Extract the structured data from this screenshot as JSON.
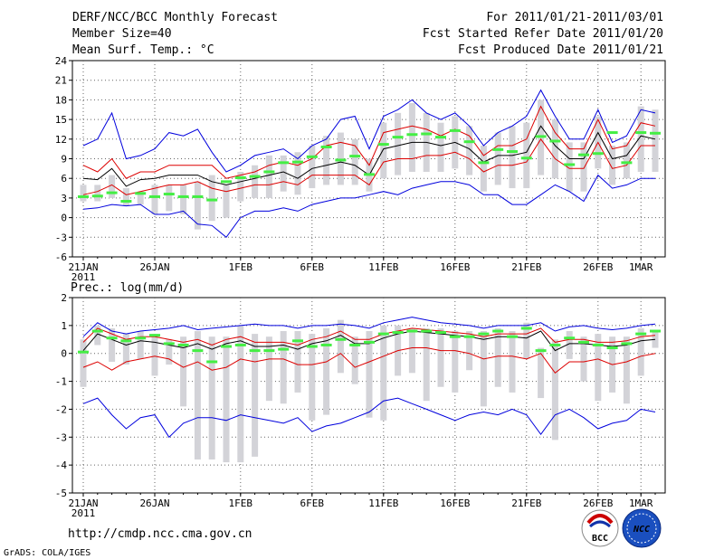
{
  "header": {
    "title": "DERF/NCC/BCC Monthly Forecast",
    "member_size": "Member Size=40",
    "variable": "Mean Surf. Temp.: °C",
    "period": "For 2011/01/21-2011/03/01",
    "started": "Fcst Started Refer Date 2011/01/20",
    "produced": "Fcst Produced Date 2011/01/21"
  },
  "footer": {
    "url": "http://cmdp.ncc.cma.gov.cn",
    "credit": "GrADS: COLA/IGES",
    "logo_bcc": "BCC",
    "logo_ncc": "NCC"
  },
  "colors": {
    "box": "#d3d3d8",
    "median": "#44ee44",
    "mean": "#000000",
    "std": "#dd0000",
    "extreme": "#0000dd",
    "grid": "#666666"
  },
  "chart_data": [
    {
      "type": "line",
      "title": "Mean Surf. Temp.: °C",
      "ylim": [
        -6,
        24
      ],
      "yticks": [
        -6,
        -3,
        0,
        3,
        6,
        9,
        12,
        15,
        18,
        21,
        24
      ],
      "x_ticks": [
        {
          "day": 0,
          "label": "21JAN",
          "sub": "2011"
        },
        {
          "day": 5,
          "label": "26JAN"
        },
        {
          "day": 11,
          "label": "1FEB"
        },
        {
          "day": 16,
          "label": "6FEB"
        },
        {
          "day": 21,
          "label": "11FEB"
        },
        {
          "day": 26,
          "label": "16FEB"
        },
        {
          "day": 31,
          "label": "21FEB"
        },
        {
          "day": 36,
          "label": "26FEB"
        },
        {
          "day": 39,
          "label": "1MAR"
        }
      ],
      "series": [
        {
          "name": "max",
          "values": [
            11,
            12,
            16,
            9,
            9.5,
            10.5,
            13,
            12.5,
            13.5,
            10,
            7,
            8,
            9.5,
            10,
            10.5,
            9,
            11,
            12,
            15,
            15.5,
            10.5,
            15.5,
            16.5,
            18,
            16,
            15,
            16,
            14,
            11,
            13,
            14,
            15.5,
            19.5,
            15.5,
            12,
            12,
            16.5,
            11.5,
            12.5,
            16.5,
            16
          ]
        },
        {
          "name": "mean_plus_std",
          "values": [
            8,
            7,
            9,
            6,
            7,
            7,
            8,
            8,
            8,
            8,
            6,
            6.5,
            7,
            8,
            8.5,
            8,
            9,
            11,
            11.5,
            11,
            8,
            13,
            13.5,
            14,
            13.5,
            12.5,
            13.5,
            12.5,
            9.5,
            11,
            11,
            12,
            17,
            13,
            10.5,
            10.5,
            15,
            10.5,
            11,
            14.5,
            14
          ]
        },
        {
          "name": "mean",
          "values": [
            6,
            5.8,
            7.5,
            4.8,
            5.8,
            6,
            6.5,
            6.5,
            6.5,
            5.5,
            5,
            5.5,
            6,
            6.5,
            7,
            6,
            7.5,
            8,
            8.5,
            8,
            6.5,
            10.5,
            11,
            11.5,
            11.5,
            11,
            11.5,
            10.5,
            8.5,
            9.5,
            9.5,
            10,
            14,
            11,
            9,
            9,
            13,
            9,
            9.5,
            12.5,
            12
          ]
        },
        {
          "name": "mean_minus_std",
          "values": [
            3.5,
            4,
            5,
            3.5,
            4,
            4.5,
            5,
            5,
            5.5,
            4.5,
            4,
            4.5,
            5,
            5,
            5.5,
            5,
            6.5,
            6.5,
            6.5,
            6.5,
            5,
            8.5,
            9,
            9,
            9.5,
            9.5,
            10,
            9,
            7,
            8,
            8,
            8.5,
            12,
            9,
            7.5,
            7.5,
            11.5,
            7.5,
            8,
            11,
            11
          ]
        },
        {
          "name": "min",
          "values": [
            1.3,
            1.5,
            2,
            1.8,
            2,
            0.5,
            0.5,
            1,
            -1,
            -1.2,
            -3,
            0,
            1,
            1,
            1.5,
            1,
            2,
            2.5,
            3,
            3,
            3.5,
            4,
            3.5,
            4.5,
            5,
            5.5,
            5.5,
            5,
            3.5,
            3.5,
            2,
            2,
            3.5,
            5,
            4,
            2.5,
            6.5,
            4.5,
            5,
            6,
            6
          ]
        },
        {
          "name": "ensemble_median",
          "values": [
            3.2,
            3.3,
            3.8,
            2.5,
            3.7,
            3.2,
            3.6,
            3.2,
            3.2,
            2.7,
            5.5,
            6.1,
            6.3,
            7,
            8.4,
            8.5,
            9.3,
            10.8,
            8.8,
            9.4,
            6.6,
            11.2,
            12.3,
            12.7,
            12.8,
            12.3,
            13.3,
            11.6,
            8.4,
            10.4,
            10.1,
            9.1,
            12.4,
            11.7,
            8.1,
            9.6,
            9.8,
            13,
            8.4,
            13,
            12.9
          ]
        }
      ],
      "boxes": {
        "low": [
          2.5,
          2.5,
          3,
          1.8,
          2,
          0.5,
          1,
          0.5,
          -1.8,
          -0.5,
          0,
          2.5,
          3,
          3,
          4,
          3.5,
          4.5,
          5,
          5,
          5,
          4,
          6,
          6.5,
          7,
          7,
          7,
          7.5,
          6.5,
          4,
          5,
          4.5,
          4.5,
          6.5,
          6,
          4,
          4,
          7.5,
          5,
          6,
          7,
          7
        ],
        "high": [
          5,
          5,
          6.5,
          4.5,
          4,
          5,
          5,
          5,
          5.5,
          6.5,
          5,
          7,
          8,
          9.5,
          9.5,
          10,
          11,
          12.5,
          13,
          12,
          9,
          14.5,
          16,
          17.5,
          16,
          14.5,
          15.5,
          14,
          11,
          13,
          14,
          14.5,
          18,
          15,
          11.5,
          11.5,
          15.5,
          11,
          11.5,
          17,
          16.5
        ]
      }
    },
    {
      "type": "line",
      "title": "Prec.: log(mm/d)",
      "ylim": [
        -5,
        2
      ],
      "yticks": [
        -5,
        -4,
        -3,
        -2,
        -1,
        0,
        1,
        2
      ],
      "x_ticks": [
        {
          "day": 0,
          "label": "21JAN",
          "sub": "2011"
        },
        {
          "day": 5,
          "label": "26JAN"
        },
        {
          "day": 11,
          "label": "1FEB"
        },
        {
          "day": 16,
          "label": "6FEB"
        },
        {
          "day": 21,
          "label": "11FEB"
        },
        {
          "day": 26,
          "label": "16FEB"
        },
        {
          "day": 31,
          "label": "21FEB"
        },
        {
          "day": 36,
          "label": "26FEB"
        },
        {
          "day": 39,
          "label": "1MAR"
        }
      ],
      "series": [
        {
          "name": "max",
          "values": [
            0.6,
            1.1,
            0.8,
            0.7,
            0.8,
            0.85,
            0.9,
            1,
            0.85,
            0.9,
            0.95,
            1,
            1.05,
            1,
            1,
            0.9,
            1,
            1,
            1.05,
            1,
            0.9,
            1.1,
            1.2,
            1.3,
            1.2,
            1.1,
            1.05,
            1,
            0.9,
            1,
            1,
            1,
            1.1,
            0.8,
            0.95,
            1,
            0.9,
            0.85,
            0.9,
            1,
            1.05
          ]
        },
        {
          "name": "mean_plus_std",
          "values": [
            0.4,
            0.9,
            0.7,
            0.5,
            0.6,
            0.6,
            0.5,
            0.4,
            0.5,
            0.3,
            0.5,
            0.6,
            0.4,
            0.4,
            0.4,
            0.3,
            0.5,
            0.6,
            0.8,
            0.5,
            0.5,
            0.7,
            0.8,
            0.9,
            0.85,
            0.8,
            0.75,
            0.7,
            0.6,
            0.7,
            0.7,
            0.7,
            0.9,
            0.4,
            0.5,
            0.5,
            0.4,
            0.4,
            0.45,
            0.6,
            0.65
          ]
        },
        {
          "name": "mean",
          "values": [
            0.1,
            0.7,
            0.5,
            0.3,
            0.45,
            0.4,
            0.3,
            0.2,
            0.35,
            0.15,
            0.35,
            0.45,
            0.25,
            0.25,
            0.3,
            0.15,
            0.35,
            0.45,
            0.65,
            0.35,
            0.35,
            0.55,
            0.7,
            0.8,
            0.75,
            0.7,
            0.65,
            0.6,
            0.5,
            0.6,
            0.6,
            0.55,
            0.8,
            0.1,
            0.35,
            0.35,
            0.3,
            0.25,
            0.3,
            0.45,
            0.5
          ]
        },
        {
          "name": "mean_minus_std",
          "values": [
            -0.5,
            -0.3,
            -0.6,
            -0.3,
            -0.2,
            -0.1,
            -0.2,
            -0.5,
            -0.3,
            -0.6,
            -0.5,
            -0.2,
            -0.3,
            -0.2,
            -0.2,
            -0.4,
            -0.4,
            -0.3,
            0,
            -0.5,
            -0.3,
            -0.1,
            0.1,
            0.2,
            0.2,
            0.1,
            0.1,
            0,
            -0.2,
            -0.1,
            -0.1,
            -0.2,
            0,
            -0.7,
            -0.3,
            -0.3,
            -0.2,
            -0.4,
            -0.3,
            -0.1,
            0
          ]
        },
        {
          "name": "min",
          "values": [
            -1.8,
            -1.6,
            -2.2,
            -2.7,
            -2.3,
            -2.2,
            -3,
            -2.5,
            -2.3,
            -2.3,
            -2.4,
            -2.2,
            -2.3,
            -2.4,
            -2.5,
            -2.3,
            -2.8,
            -2.6,
            -2.5,
            -2.3,
            -2.1,
            -1.7,
            -1.6,
            -1.8,
            -2,
            -2.2,
            -2.4,
            -2.2,
            -2.1,
            -2.2,
            -2,
            -2.2,
            -2.9,
            -2.2,
            -2,
            -2.3,
            -2.7,
            -2.5,
            -2.4,
            -2,
            -2.1
          ]
        },
        {
          "name": "ensemble_median",
          "values": [
            0.05,
            0.8,
            0.55,
            0.45,
            0.55,
            0.65,
            0.35,
            0.3,
            0.1,
            -0.3,
            0.25,
            0.3,
            0.1,
            0.1,
            0.15,
            0.45,
            0.25,
            0.3,
            0.5,
            0.3,
            0.4,
            0.7,
            0.75,
            0.8,
            0.8,
            0.75,
            0.6,
            0.6,
            0.7,
            0.8,
            0.6,
            0.9,
            0.1,
            0.3,
            0.55,
            0.4,
            0.3,
            0.2,
            0.35,
            0.7,
            0.8
          ]
        }
      ],
      "boxes": {
        "low": [
          -1.2,
          0.3,
          -0.3,
          -0.4,
          -0.2,
          -0.8,
          -0.4,
          -1.9,
          -3.8,
          -3.8,
          -3.9,
          -3.9,
          -3.7,
          -1.7,
          -1.8,
          -1.4,
          -2.4,
          -2.2,
          -0.7,
          -1.1,
          -2.3,
          -2.4,
          -0.8,
          -0.7,
          -1.7,
          -1.2,
          -1.4,
          -0.6,
          -1.9,
          -1.2,
          -1.4,
          -0.2,
          -1.6,
          -3.1,
          -0.2,
          -1.0,
          -1.7,
          -1.4,
          -1.8,
          -0.8,
          0.2
        ],
        "high": [
          0.5,
          1.0,
          0.9,
          0.7,
          0.8,
          0.7,
          0.5,
          0.6,
          0.8,
          0.6,
          0.6,
          1.0,
          0.7,
          0.6,
          0.8,
          0.8,
          0.7,
          0.9,
          1.2,
          0.6,
          0.8,
          1.0,
          1.0,
          0.9,
          0.9,
          0.9,
          0.8,
          0.8,
          0.8,
          0.9,
          0.8,
          1.1,
          0.2,
          0.5,
          0.8,
          0.6,
          0.7,
          0.6,
          0.6,
          0.9,
          0.8
        ]
      }
    }
  ]
}
